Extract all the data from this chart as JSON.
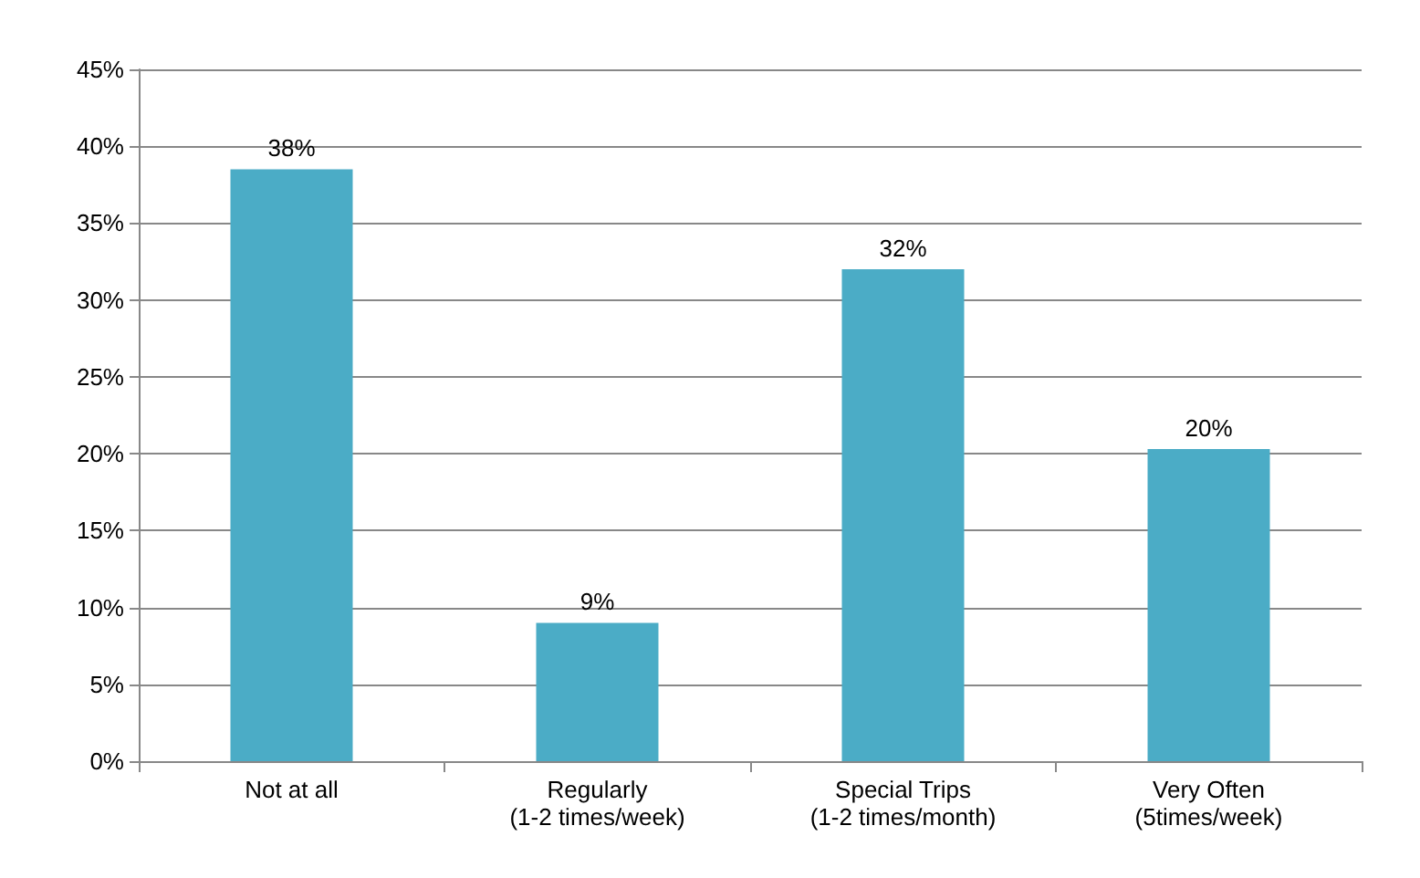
{
  "chart_data": {
    "type": "bar",
    "categories": [
      "Not at all",
      "Regularly\n(1-2 times/week)",
      "Special Trips\n(1-2 times/month)",
      "Very Often\n(5times/week)"
    ],
    "values": [
      38.5,
      9,
      32,
      20.3
    ],
    "value_labels": [
      "38%",
      "9%",
      "32%",
      "20%"
    ],
    "color": "#4bacc6",
    "ylim": [
      0,
      45
    ],
    "yticks": [
      {
        "value": 0,
        "label": "0%"
      },
      {
        "value": 5,
        "label": "5%"
      },
      {
        "value": 10,
        "label": "10%"
      },
      {
        "value": 15,
        "label": "15%"
      },
      {
        "value": 20,
        "label": "20%"
      },
      {
        "value": 25,
        "label": "25%"
      },
      {
        "value": 30,
        "label": "30%"
      },
      {
        "value": 35,
        "label": "35%"
      },
      {
        "value": 40,
        "label": "40%"
      },
      {
        "value": 45,
        "label": "45%"
      }
    ],
    "grid": true
  }
}
